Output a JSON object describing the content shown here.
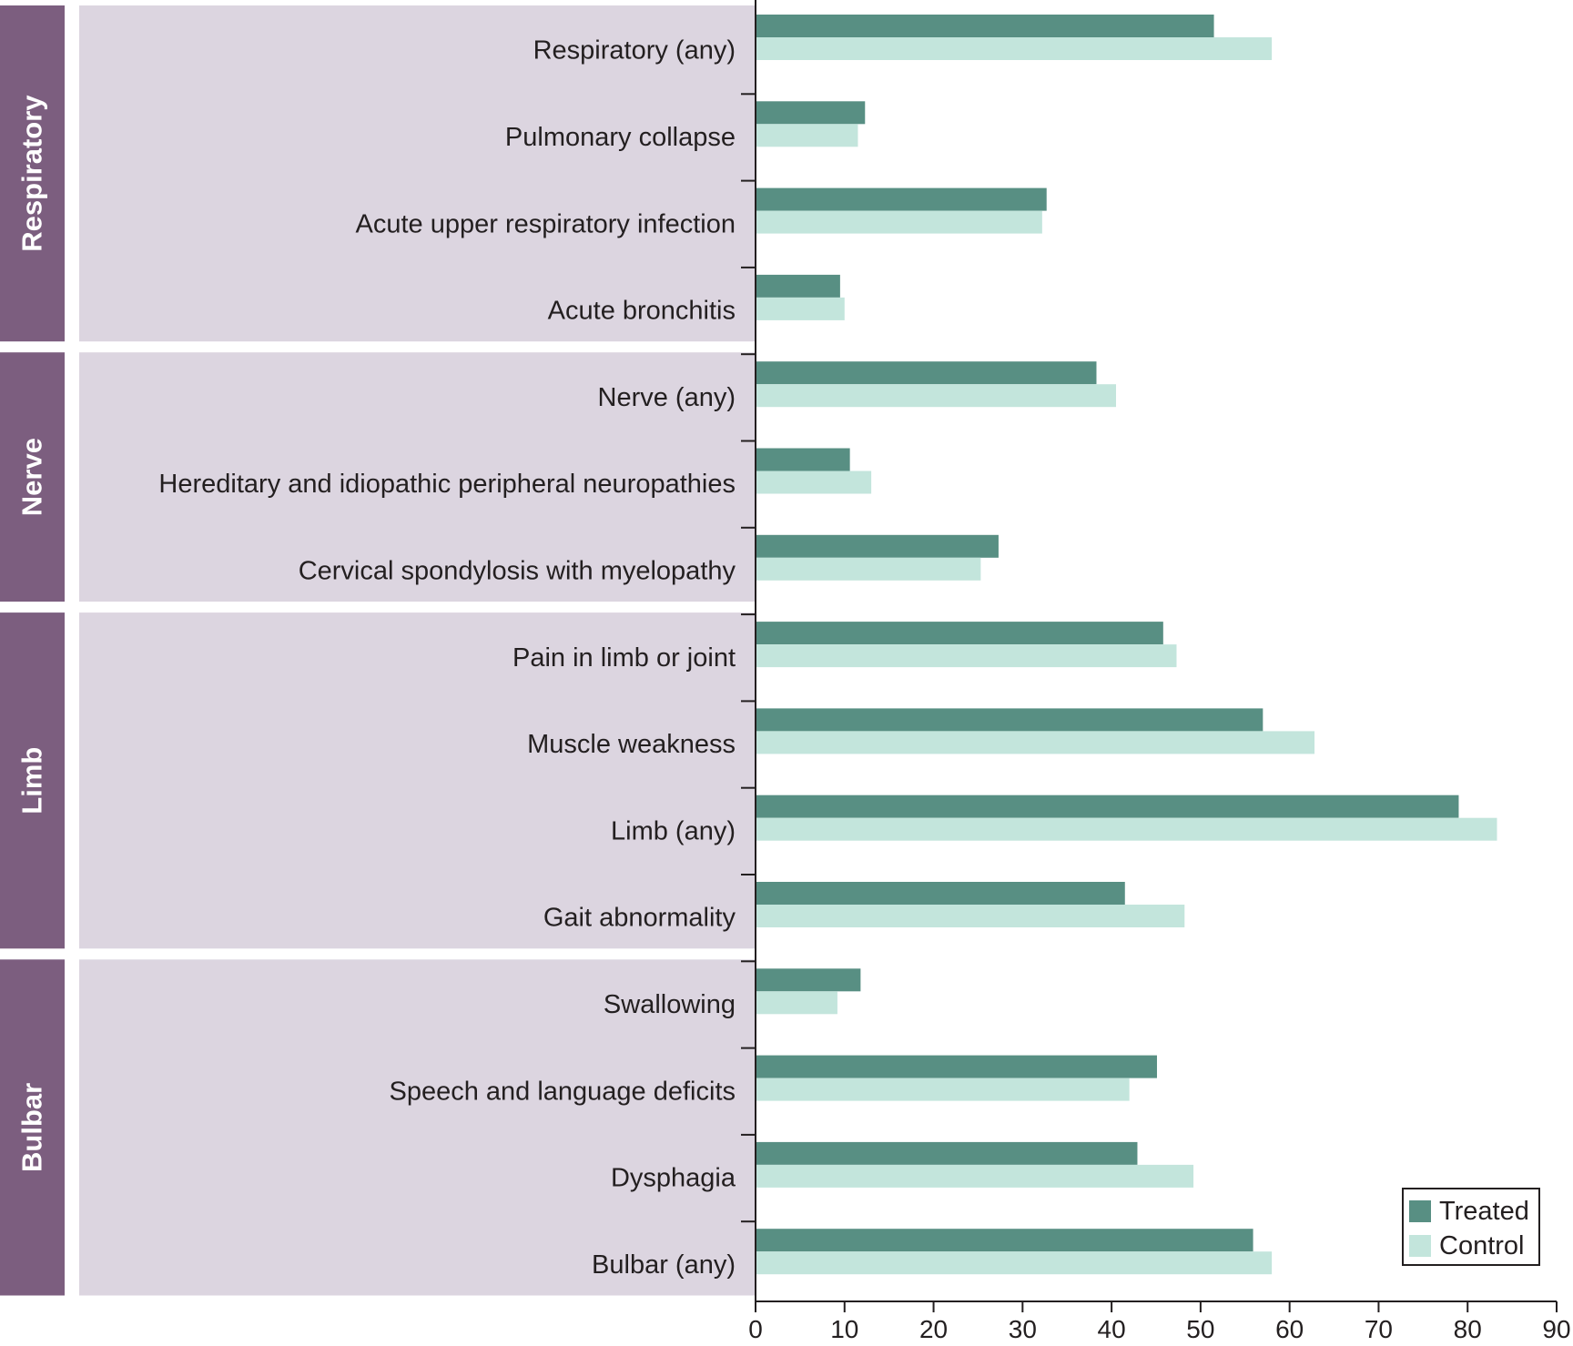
{
  "chart_data": {
    "type": "bar",
    "orientation": "horizontal",
    "xlim": [
      0,
      90
    ],
    "xticks": [
      0,
      10,
      20,
      30,
      40,
      50,
      60,
      70,
      80,
      90
    ],
    "grid": false,
    "legend_position": "bottom-right",
    "colors": {
      "treated": "#588f83",
      "control": "#c3e5dc",
      "group_tab": "#7c5e7f",
      "group_panel": "#dcd5e0",
      "axis": "#231f20"
    },
    "groups": [
      {
        "name": "Respiratory",
        "start": 0,
        "count": 4
      },
      {
        "name": "Nerve",
        "start": 4,
        "count": 3
      },
      {
        "name": "Limb",
        "start": 7,
        "count": 4
      },
      {
        "name": "Bulbar",
        "start": 11,
        "count": 4
      }
    ],
    "categories": [
      "Respiratory (any)",
      "Pulmonary collapse",
      "Acute upper respiratory infection",
      "Acute bronchitis",
      "Nerve (any)",
      "Hereditary and idiopathic peripheral neuropathies",
      "Cervical spondylosis with myelopathy",
      "Pain in limb or joint",
      "Muscle weakness",
      "Limb (any)",
      "Gait abnormality",
      "Swallowing",
      "Speech and language deficits",
      "Dysphagia",
      "Bulbar (any)"
    ],
    "series": [
      {
        "name": "Treated",
        "values": [
          51.5,
          12.3,
          32.7,
          9.5,
          38.3,
          10.6,
          27.3,
          45.8,
          57.0,
          79.0,
          41.5,
          11.8,
          45.1,
          42.9,
          55.9
        ]
      },
      {
        "name": "Control",
        "values": [
          58.0,
          11.5,
          32.2,
          10.0,
          40.5,
          13.0,
          25.3,
          47.3,
          62.8,
          83.3,
          48.2,
          9.2,
          42.0,
          49.2,
          58.0
        ]
      }
    ]
  }
}
